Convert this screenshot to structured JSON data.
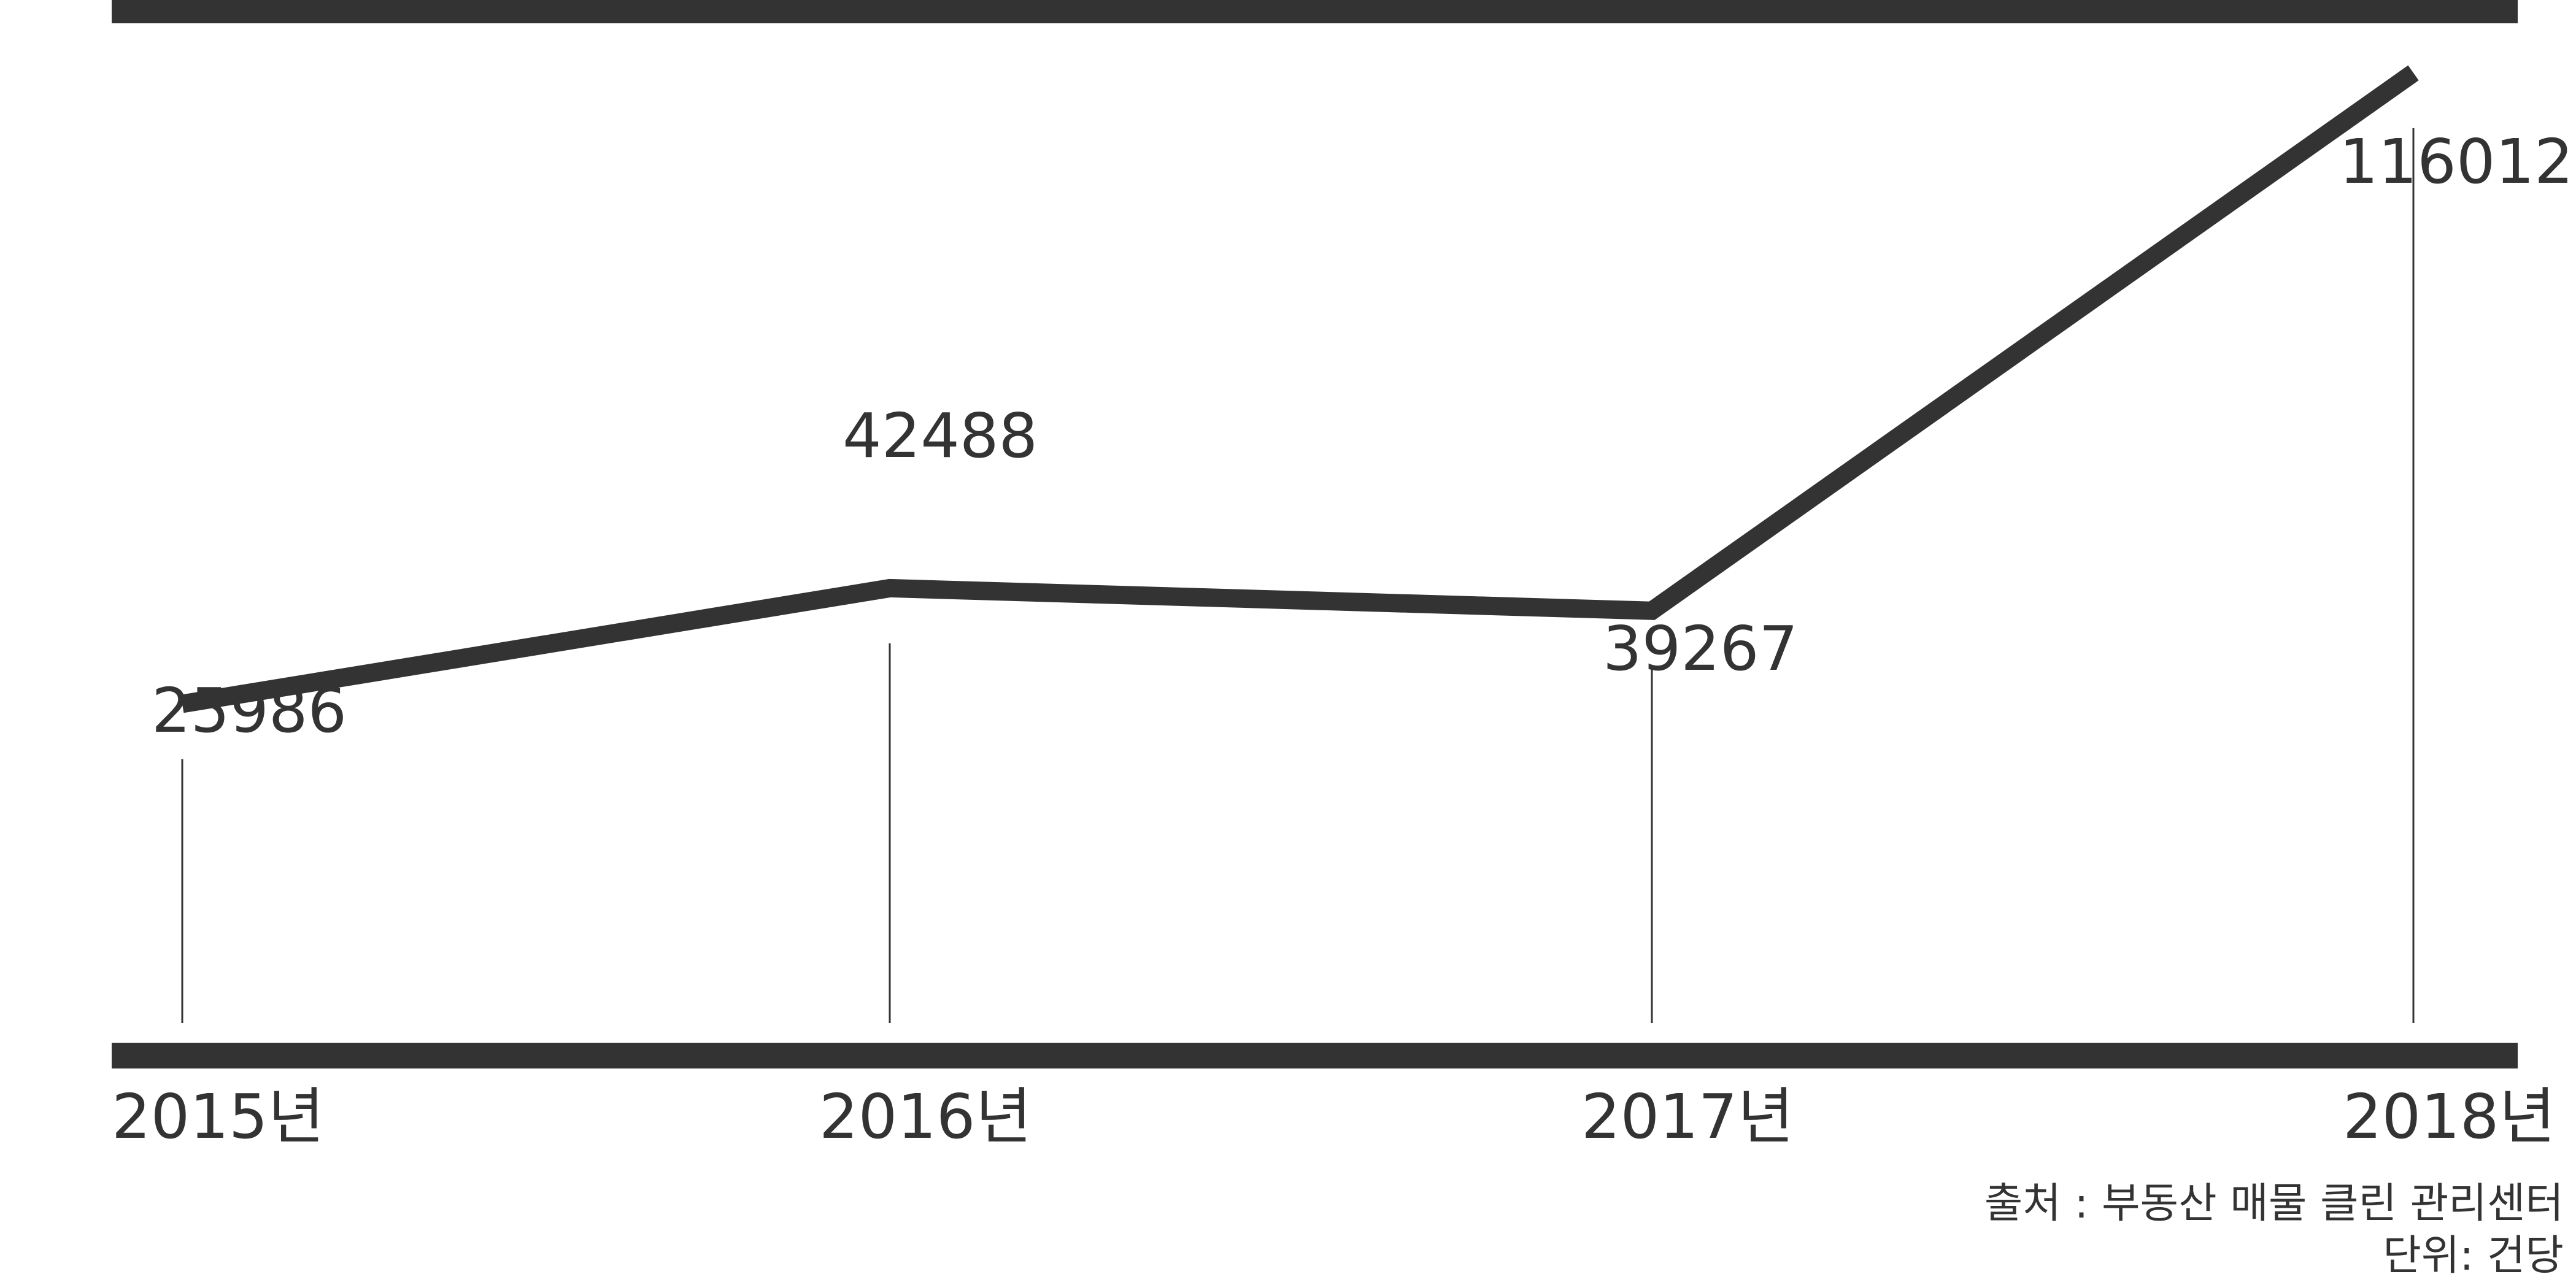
{
  "chart_data": {
    "type": "line",
    "categories": [
      "2015년",
      "2016년",
      "2017년",
      "2018년"
    ],
    "series": [
      {
        "values": [
          25986,
          42488,
          39267,
          116012
        ]
      }
    ],
    "data_labels": [
      "25986",
      "42488",
      "39267",
      "116012"
    ],
    "title": "",
    "xlabel": "",
    "ylabel": "",
    "grid": false,
    "legend": "none",
    "source": "출처 : 부동산 매물 클린 관리센터",
    "unit": "단위: 건당",
    "color": "#333333"
  }
}
